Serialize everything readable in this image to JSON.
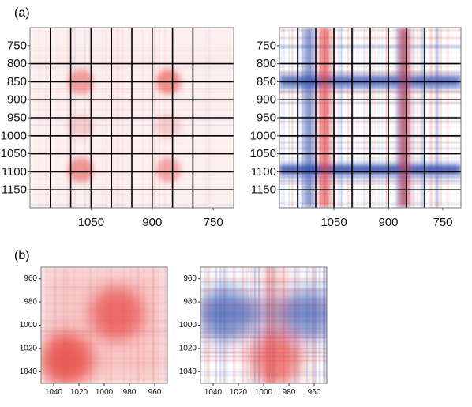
{
  "figure": {
    "panel_a_label": "(a)",
    "panel_b_label": "(b)"
  },
  "colors": {
    "positive": "#e53935",
    "negative": "#2e4fb0",
    "neutral": "#ffffff",
    "grid": "#000000",
    "frame": "#777777"
  },
  "chart_data": [
    {
      "id": "a1",
      "type": "heatmap",
      "panel": "(a)",
      "variant": "synchronous",
      "xlim": [
        1200,
        700
      ],
      "ylim": [
        700,
        1200
      ],
      "x_ticks": [
        1050,
        900,
        750
      ],
      "y_ticks": [
        750,
        800,
        850,
        900,
        950,
        1000,
        1050,
        1100,
        1150
      ],
      "grid_x": [
        1150,
        1100,
        1050,
        1000,
        950,
        900,
        850,
        800
      ],
      "grid_y": [
        800,
        850,
        900,
        950,
        1000,
        1050,
        1100,
        1150
      ],
      "xlabel": "",
      "ylabel": "",
      "peaks": [
        {
          "x": 1075,
          "y": 850,
          "sign": "positive",
          "intensity": 0.45
        },
        {
          "x": 860,
          "y": 850,
          "sign": "positive",
          "intensity": 0.55
        },
        {
          "x": 1075,
          "y": 1095,
          "sign": "positive",
          "intensity": 0.5
        },
        {
          "x": 860,
          "y": 1095,
          "sign": "positive",
          "intensity": 0.4
        },
        {
          "x": 1075,
          "y": 975,
          "sign": "positive",
          "intensity": 0.2
        },
        {
          "x": 860,
          "y": 975,
          "sign": "positive",
          "intensity": 0.2
        }
      ]
    },
    {
      "id": "a2",
      "type": "heatmap",
      "panel": "(a)",
      "variant": "asynchronous",
      "xlim": [
        1200,
        700
      ],
      "ylim": [
        700,
        1200
      ],
      "x_ticks": [
        1050,
        900,
        750
      ],
      "y_ticks": [
        750,
        800,
        850,
        900,
        950,
        1000,
        1050,
        1100,
        1150
      ],
      "grid_x": [
        1150,
        1100,
        1050,
        1000,
        950,
        900,
        850,
        800
      ],
      "grid_y": [
        800,
        850,
        900,
        950,
        1000,
        1050,
        1100,
        1150
      ],
      "xlabel": "",
      "ylabel": "",
      "bands": [
        {
          "orientation": "horizontal",
          "at": 850,
          "sign": "negative",
          "intensity": 0.8
        },
        {
          "orientation": "horizontal",
          "at": 1095,
          "sign": "negative",
          "intensity": 0.85
        },
        {
          "orientation": "vertical",
          "at": 1120,
          "sign": "negative",
          "intensity": 0.6
        },
        {
          "orientation": "vertical",
          "at": 860,
          "sign": "negative",
          "intensity": 0.6
        },
        {
          "orientation": "vertical",
          "at": 1075,
          "sign": "positive",
          "intensity": 0.7
        },
        {
          "orientation": "vertical",
          "at": 855,
          "sign": "positive",
          "intensity": 0.6
        }
      ]
    },
    {
      "id": "b1",
      "type": "heatmap",
      "panel": "(b)",
      "variant": "synchronous",
      "xlim": [
        1050,
        950
      ],
      "ylim": [
        950,
        1050
      ],
      "x_ticks": [
        1040,
        1020,
        1000,
        980,
        960
      ],
      "y_ticks": [
        960,
        980,
        1000,
        1020,
        1040
      ],
      "xlabel": "",
      "ylabel": "",
      "peaks": [
        {
          "x": 1030,
          "y": 1030,
          "sign": "positive",
          "intensity": 0.75
        },
        {
          "x": 990,
          "y": 990,
          "sign": "positive",
          "intensity": 0.65
        }
      ]
    },
    {
      "id": "b2",
      "type": "heatmap",
      "panel": "(b)",
      "variant": "asynchronous",
      "xlim": [
        1050,
        950
      ],
      "ylim": [
        950,
        1050
      ],
      "x_ticks": [
        1040,
        1020,
        1000,
        980,
        960
      ],
      "y_ticks": [
        960,
        980,
        1000,
        1020,
        1040
      ],
      "xlabel": "",
      "ylabel": "",
      "peaks": [
        {
          "x": 990,
          "y": 1030,
          "sign": "positive",
          "intensity": 0.55
        },
        {
          "x": 1030,
          "y": 990,
          "sign": "negative",
          "intensity": 0.5
        },
        {
          "x": 965,
          "y": 990,
          "sign": "negative",
          "intensity": 0.4
        }
      ]
    }
  ]
}
